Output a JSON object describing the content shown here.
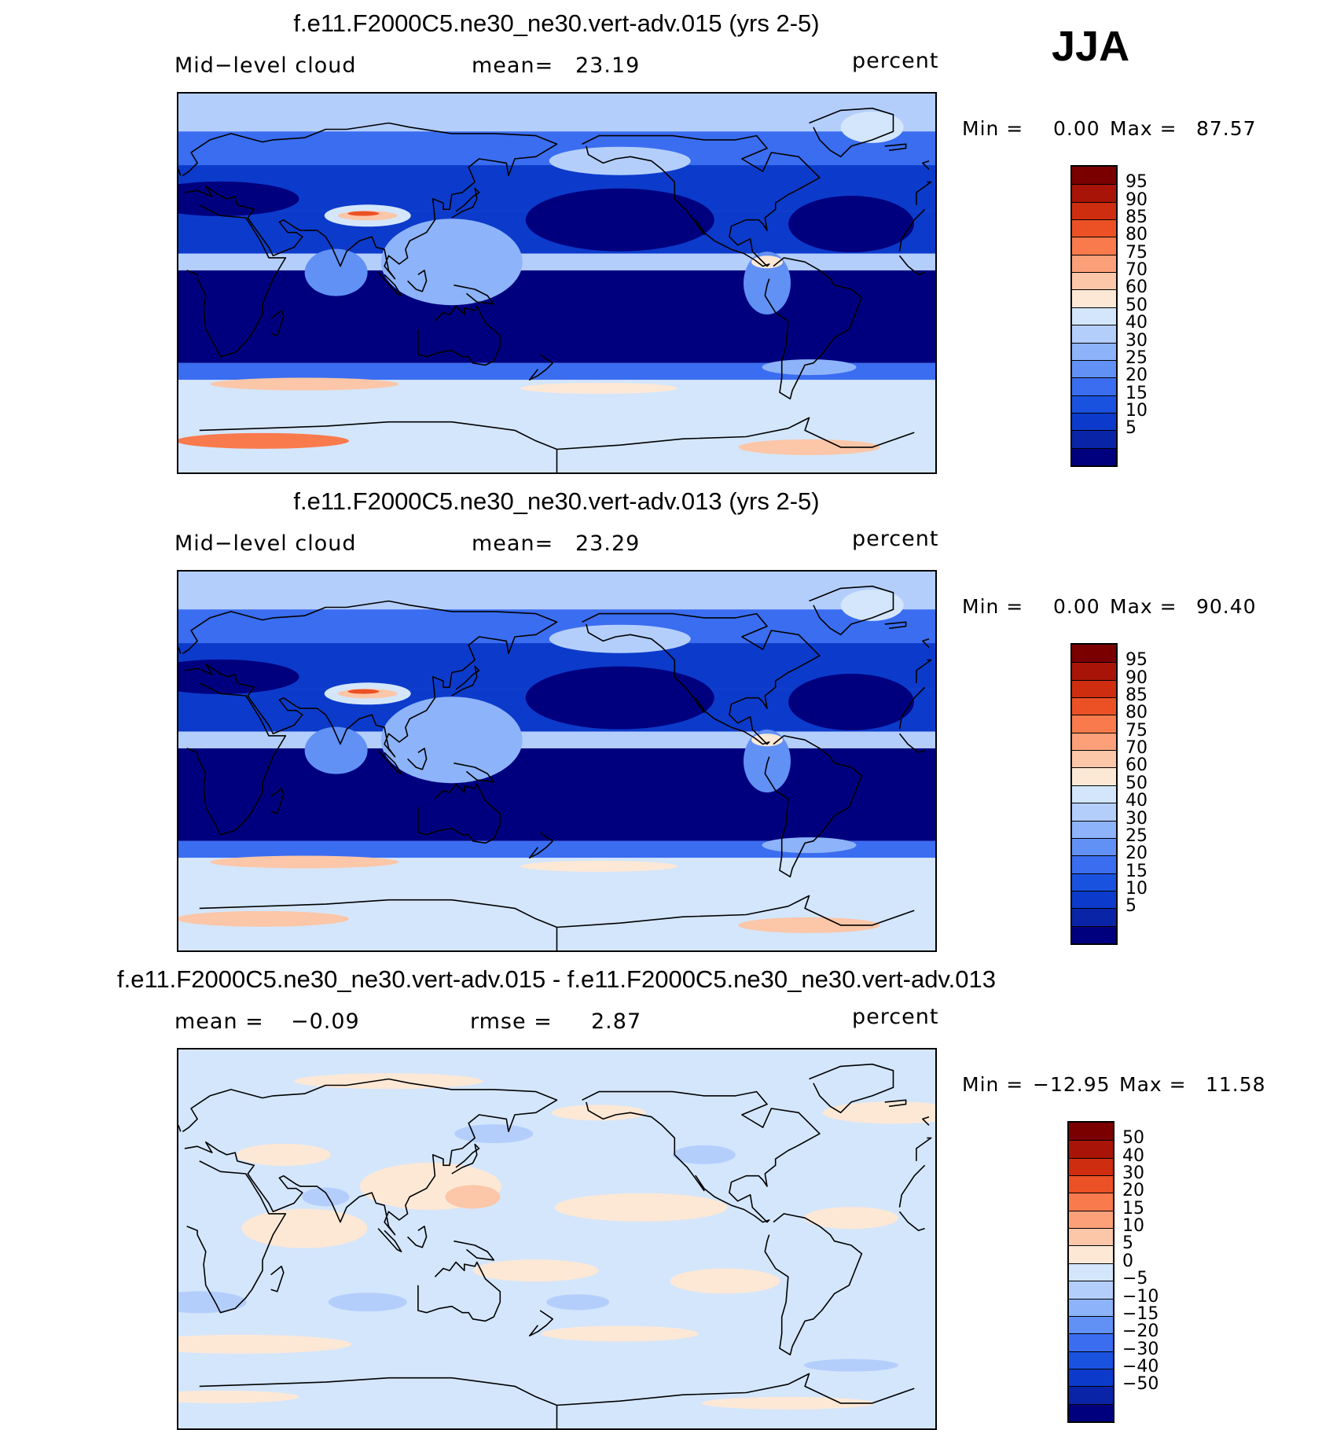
{
  "season": "JJA",
  "palette_main": [
    "#00007f",
    "#0a24a8",
    "#0c3bcb",
    "#1a52e0",
    "#3a6df0",
    "#6191f5",
    "#8db3fa",
    "#b4cefc",
    "#d4e6fb",
    "#fde8d6",
    "#fcc6a8",
    "#fca07a",
    "#f97a4c",
    "#ec5125",
    "#cf2d10",
    "#a81407",
    "#7a0000"
  ],
  "palette_diff": [
    "#00007f",
    "#0a24a8",
    "#0c3bcb",
    "#1a52e0",
    "#3a6df0",
    "#6191f5",
    "#8db3fa",
    "#b4cefc",
    "#d4e6fb",
    "#fde8d6",
    "#fcc6a8",
    "#fca07a",
    "#f97a4c",
    "#ec5125",
    "#cf2d10",
    "#a81407",
    "#7a0000"
  ],
  "panels": [
    {
      "title": "f.e11.F2000C5.ne30_ne30.vert-adv.015 (yrs 2-5)",
      "left_label": "Mid−level cloud",
      "center_label": "mean=",
      "center_value": "23.19",
      "units": "percent",
      "min_label": "Min =",
      "min_value": "0.00",
      "max_label": "Max =",
      "max_value": "87.57",
      "colorbar_levels": [
        "95",
        "90",
        "85",
        "80",
        "75",
        "70",
        "60",
        "50",
        "40",
        "30",
        "25",
        "20",
        "15",
        "10",
        "5"
      ],
      "field": "main"
    },
    {
      "title": "f.e11.F2000C5.ne30_ne30.vert-adv.013 (yrs 2-5)",
      "left_label": "Mid−level cloud",
      "center_label": "mean=",
      "center_value": "23.29",
      "units": "percent",
      "min_label": "Min =",
      "min_value": "0.00",
      "max_label": "Max =",
      "max_value": "90.40",
      "colorbar_levels": [
        "95",
        "90",
        "85",
        "80",
        "75",
        "70",
        "60",
        "50",
        "40",
        "30",
        "25",
        "20",
        "15",
        "10",
        "5"
      ],
      "field": "main"
    },
    {
      "title": "f.e11.F2000C5.ne30_ne30.vert-adv.015 - f.e11.F2000C5.ne30_ne30.vert-adv.013",
      "left_label": "mean =",
      "left_value": "−0.09",
      "center_label": "rmse =",
      "center_value": "2.87",
      "units": "percent",
      "min_label": "Min =",
      "min_value": "−12.95",
      "max_label": "Max =",
      "max_value": "11.58",
      "colorbar_levels": [
        "50",
        "40",
        "30",
        "20",
        "15",
        "10",
        "5",
        "0",
        "−5",
        "−10",
        "−15",
        "−20",
        "−30",
        "−40",
        "−50"
      ],
      "field": "diff"
    }
  ]
}
